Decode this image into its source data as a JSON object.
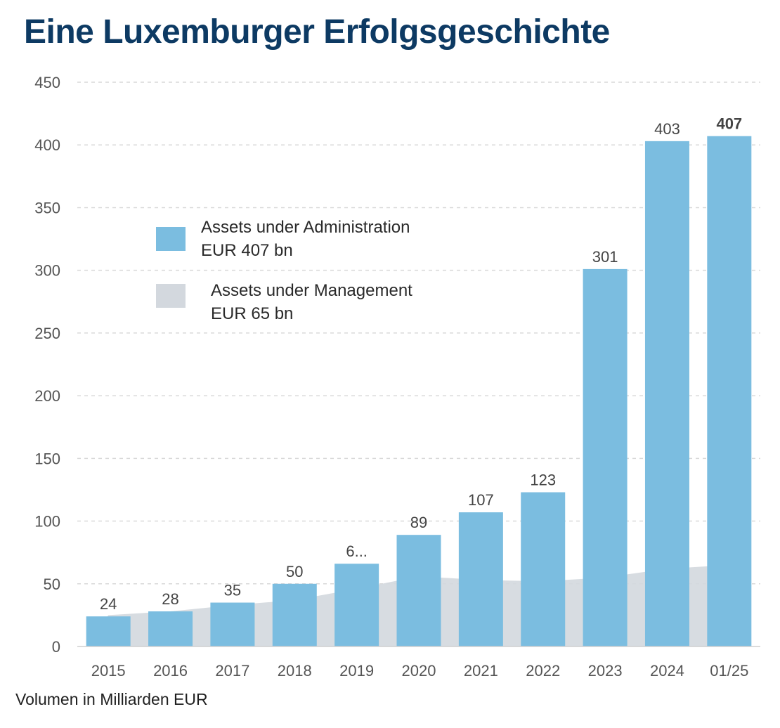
{
  "title": "Eine Luxemburger Erfolgsgeschichte",
  "footer": "Volumen in Milliarden EUR",
  "colors": {
    "aua": "#7bbde0",
    "aum": "#d3d8de",
    "title": "#0d3a63",
    "grid": "#d9d9d9"
  },
  "chart_data": {
    "type": "bar",
    "categories": [
      "2015",
      "2016",
      "2017",
      "2018",
      "2019",
      "2020",
      "2021",
      "2022",
      "2023",
      "2024",
      "01/25"
    ],
    "ylim": [
      0,
      450
    ],
    "yticks": [
      0,
      50,
      100,
      150,
      200,
      250,
      300,
      350,
      400,
      450
    ],
    "grid": true,
    "legend_placement": "upper-left inside plot",
    "series": [
      {
        "name": "Assets under Administration",
        "legend_lines": [
          "Assets under Administration",
          "EUR 407 bn"
        ],
        "type": "bar",
        "color": "#7bbde0",
        "values": [
          24,
          28,
          35,
          50,
          66,
          89,
          107,
          123,
          301,
          403,
          407
        ],
        "labels": [
          "24",
          "28",
          "35",
          "50",
          "6...",
          "89",
          "107",
          "123",
          "301",
          "403",
          "407"
        ]
      },
      {
        "name": "Assets under Management",
        "legend_lines": [
          "Assets under Management",
          "EUR 65 bn"
        ],
        "type": "area",
        "color": "#d3d8de",
        "values": [
          25,
          28,
          33,
          37,
          46,
          56,
          53,
          52,
          55,
          62,
          65
        ]
      }
    ]
  }
}
